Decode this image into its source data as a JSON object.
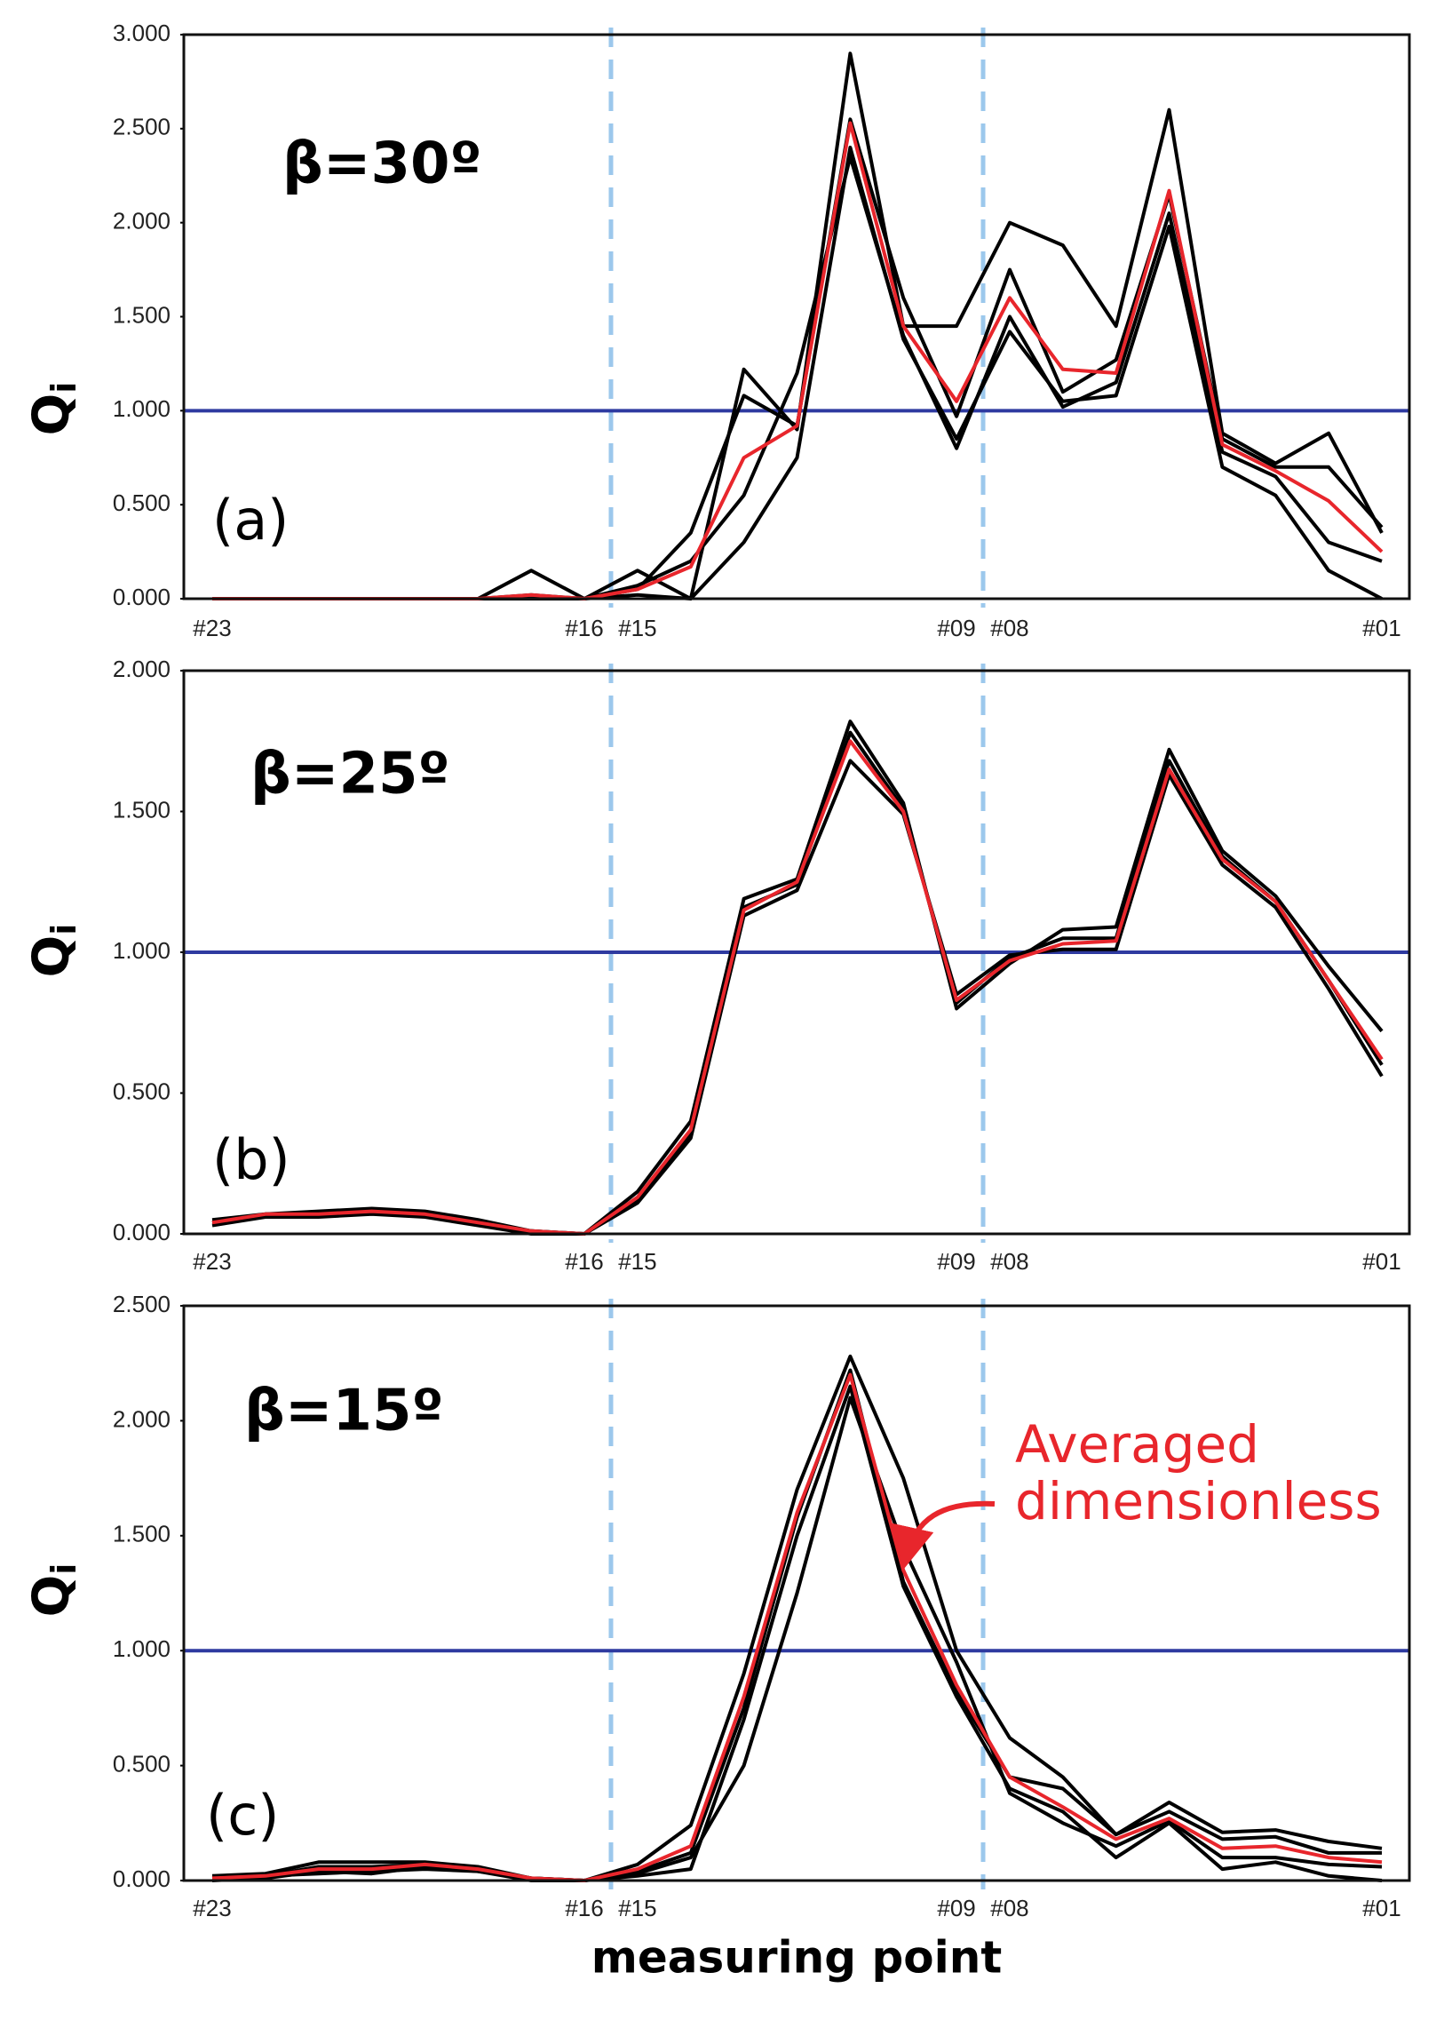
{
  "chart_data": [
    {
      "type": "line",
      "annotation": "β=30º",
      "panel_label": "(a)",
      "y_label": "Q",
      "y_label_subscript": "i",
      "categories": [
        "#23",
        null,
        null,
        null,
        null,
        null,
        null,
        "#16",
        "#15",
        null,
        null,
        null,
        null,
        null,
        "#09",
        "#08",
        null,
        null,
        null,
        null,
        null,
        null,
        "#01"
      ],
      "ylim": [
        0,
        3
      ],
      "yticks": [
        {
          "value": 0,
          "label": "0.000"
        },
        {
          "value": 0.5,
          "label": "0.500"
        },
        {
          "value": 1,
          "label": "1.000"
        },
        {
          "value": 1.5,
          "label": "1.500"
        },
        {
          "value": 2,
          "label": "2.000"
        },
        {
          "value": 2.5,
          "label": "2.500"
        },
        {
          "value": 3,
          "label": "3.000"
        }
      ],
      "hline": 1,
      "hline_color": "#2e3aa0",
      "series": [
        {
          "color": "#000000",
          "values": [
            0,
            0,
            0,
            0,
            0,
            0,
            0.15,
            0,
            0.15,
            0,
            1.22,
            0.9,
            2.9,
            1.45,
            1.45,
            2.0,
            1.88,
            1.45,
            2.6,
            0.88,
            0.72,
            0.88,
            0.35
          ]
        },
        {
          "color": "#000000",
          "values": [
            0,
            0,
            0,
            0,
            0,
            0,
            0.02,
            0,
            0.05,
            0.35,
            1.08,
            0.92,
            2.55,
            1.6,
            0.97,
            1.75,
            1.1,
            1.27,
            2.15,
            0.85,
            0.7,
            0.7,
            0.38
          ]
        },
        {
          "color": "#000000",
          "values": [
            0,
            0,
            0,
            0,
            0,
            0,
            0,
            0,
            0.07,
            0.2,
            0.55,
            1.2,
            2.35,
            1.4,
            0.8,
            1.5,
            1.02,
            1.15,
            2.05,
            0.78,
            0.65,
            0.3,
            0.2
          ]
        },
        {
          "color": "#000000",
          "values": [
            0,
            0,
            0,
            0,
            0,
            0,
            0,
            0,
            0.02,
            0,
            0.3,
            0.75,
            2.4,
            1.38,
            0.85,
            1.42,
            1.05,
            1.08,
            1.98,
            0.7,
            0.55,
            0.15,
            0
          ]
        },
        {
          "color": "#e8262c",
          "values": [
            0,
            0,
            0,
            0,
            0,
            0,
            0.02,
            0,
            0.05,
            0.17,
            0.75,
            0.92,
            2.53,
            1.45,
            1.05,
            1.6,
            1.22,
            1.2,
            2.17,
            0.82,
            0.68,
            0.52,
            0.25
          ]
        }
      ]
    },
    {
      "type": "line",
      "annotation": "β=25º",
      "panel_label": "(b)",
      "y_label": "Q",
      "y_label_subscript": "i",
      "categories": [
        "#23",
        null,
        null,
        null,
        null,
        null,
        null,
        "#16",
        "#15",
        null,
        null,
        null,
        null,
        null,
        "#09",
        "#08",
        null,
        null,
        null,
        null,
        null,
        null,
        "#01"
      ],
      "ylim": [
        0,
        2
      ],
      "yticks": [
        {
          "value": 0,
          "label": "0.000"
        },
        {
          "value": 0.5,
          "label": "0.500"
        },
        {
          "value": 1,
          "label": "1.000"
        },
        {
          "value": 1.5,
          "label": "1.500"
        },
        {
          "value": 2,
          "label": "2.000"
        }
      ],
      "hline": 1,
      "hline_color": "#2e3aa0",
      "series": [
        {
          "color": "#000000",
          "values": [
            0.05,
            0.07,
            0.08,
            0.09,
            0.08,
            0.05,
            0.01,
            0,
            0.15,
            0.4,
            1.19,
            1.26,
            1.82,
            1.53,
            0.8,
            0.96,
            1.08,
            1.09,
            1.72,
            1.36,
            1.2,
            0.95,
            0.72
          ]
        },
        {
          "color": "#000000",
          "values": [
            0.03,
            0.06,
            0.06,
            0.07,
            0.06,
            0.03,
            0,
            0,
            0.11,
            0.34,
            1.13,
            1.22,
            1.68,
            1.49,
            0.85,
            0.99,
            1.01,
            1.01,
            1.63,
            1.31,
            1.16,
            0.87,
            0.56
          ]
        },
        {
          "color": "#000000",
          "values": [
            0.04,
            0.07,
            0.07,
            0.08,
            0.07,
            0.04,
            0.01,
            0,
            0.12,
            0.36,
            1.16,
            1.24,
            1.78,
            1.51,
            0.82,
            0.98,
            1.05,
            1.05,
            1.68,
            1.34,
            1.18,
            0.9,
            0.6
          ]
        },
        {
          "color": "#e8262c",
          "values": [
            0.04,
            0.07,
            0.07,
            0.08,
            0.07,
            0.04,
            0.01,
            0,
            0.13,
            0.37,
            1.15,
            1.25,
            1.75,
            1.5,
            0.83,
            0.97,
            1.03,
            1.04,
            1.65,
            1.33,
            1.18,
            0.9,
            0.62
          ]
        }
      ]
    },
    {
      "type": "line",
      "annotation": "β=15º",
      "panel_label": "(c)",
      "y_label": "Q",
      "y_label_subscript": "i",
      "x_label": "measuring point",
      "note": "Averaged dimensionless",
      "note_color": "#e8262c",
      "categories": [
        "#23",
        null,
        null,
        null,
        null,
        null,
        null,
        "#16",
        "#15",
        null,
        null,
        null,
        null,
        null,
        "#09",
        "#08",
        null,
        null,
        null,
        null,
        null,
        null,
        "#01"
      ],
      "ylim": [
        0,
        2.5
      ],
      "yticks": [
        {
          "value": 0,
          "label": "0.000"
        },
        {
          "value": 0.5,
          "label": "0.500"
        },
        {
          "value": 1,
          "label": "1.000"
        },
        {
          "value": 1.5,
          "label": "1.500"
        },
        {
          "value": 2,
          "label": "2.000"
        },
        {
          "value": 2.5,
          "label": "2.500"
        }
      ],
      "hline": 1,
      "hline_color": "#2e3aa0",
      "series": [
        {
          "color": "#000000",
          "values": [
            0.02,
            0.03,
            0.08,
            0.08,
            0.08,
            0.06,
            0.01,
            0,
            0.07,
            0.24,
            0.9,
            1.7,
            2.28,
            1.75,
            1.0,
            0.62,
            0.45,
            0.2,
            0.34,
            0.21,
            0.22,
            0.17,
            0.14
          ]
        },
        {
          "color": "#000000",
          "values": [
            0.01,
            0.02,
            0.06,
            0.06,
            0.07,
            0.05,
            0.01,
            0,
            0.04,
            0.12,
            0.75,
            1.58,
            2.22,
            1.3,
            0.82,
            0.45,
            0.4,
            0.2,
            0.3,
            0.18,
            0.19,
            0.12,
            0.12
          ]
        },
        {
          "color": "#000000",
          "values": [
            0,
            0.01,
            0.04,
            0.03,
            0.06,
            0.04,
            0,
            0,
            0.03,
            0.1,
            0.5,
            1.25,
            2.1,
            1.45,
            0.95,
            0.38,
            0.25,
            0.15,
            0.26,
            0.1,
            0.1,
            0.07,
            0.06
          ]
        },
        {
          "color": "#000000",
          "values": [
            0.01,
            0.02,
            0.03,
            0.04,
            0.05,
            0.04,
            0.01,
            0,
            0.02,
            0.05,
            0.7,
            1.5,
            2.15,
            1.28,
            0.8,
            0.4,
            0.3,
            0.1,
            0.25,
            0.05,
            0.08,
            0.02,
            0.0
          ]
        },
        {
          "color": "#e8262c",
          "values": [
            0.01,
            0.02,
            0.05,
            0.05,
            0.07,
            0.05,
            0.01,
            0,
            0.05,
            0.15,
            0.8,
            1.6,
            2.2,
            1.35,
            0.85,
            0.45,
            0.32,
            0.18,
            0.27,
            0.14,
            0.15,
            0.1,
            0.08
          ]
        }
      ]
    }
  ]
}
